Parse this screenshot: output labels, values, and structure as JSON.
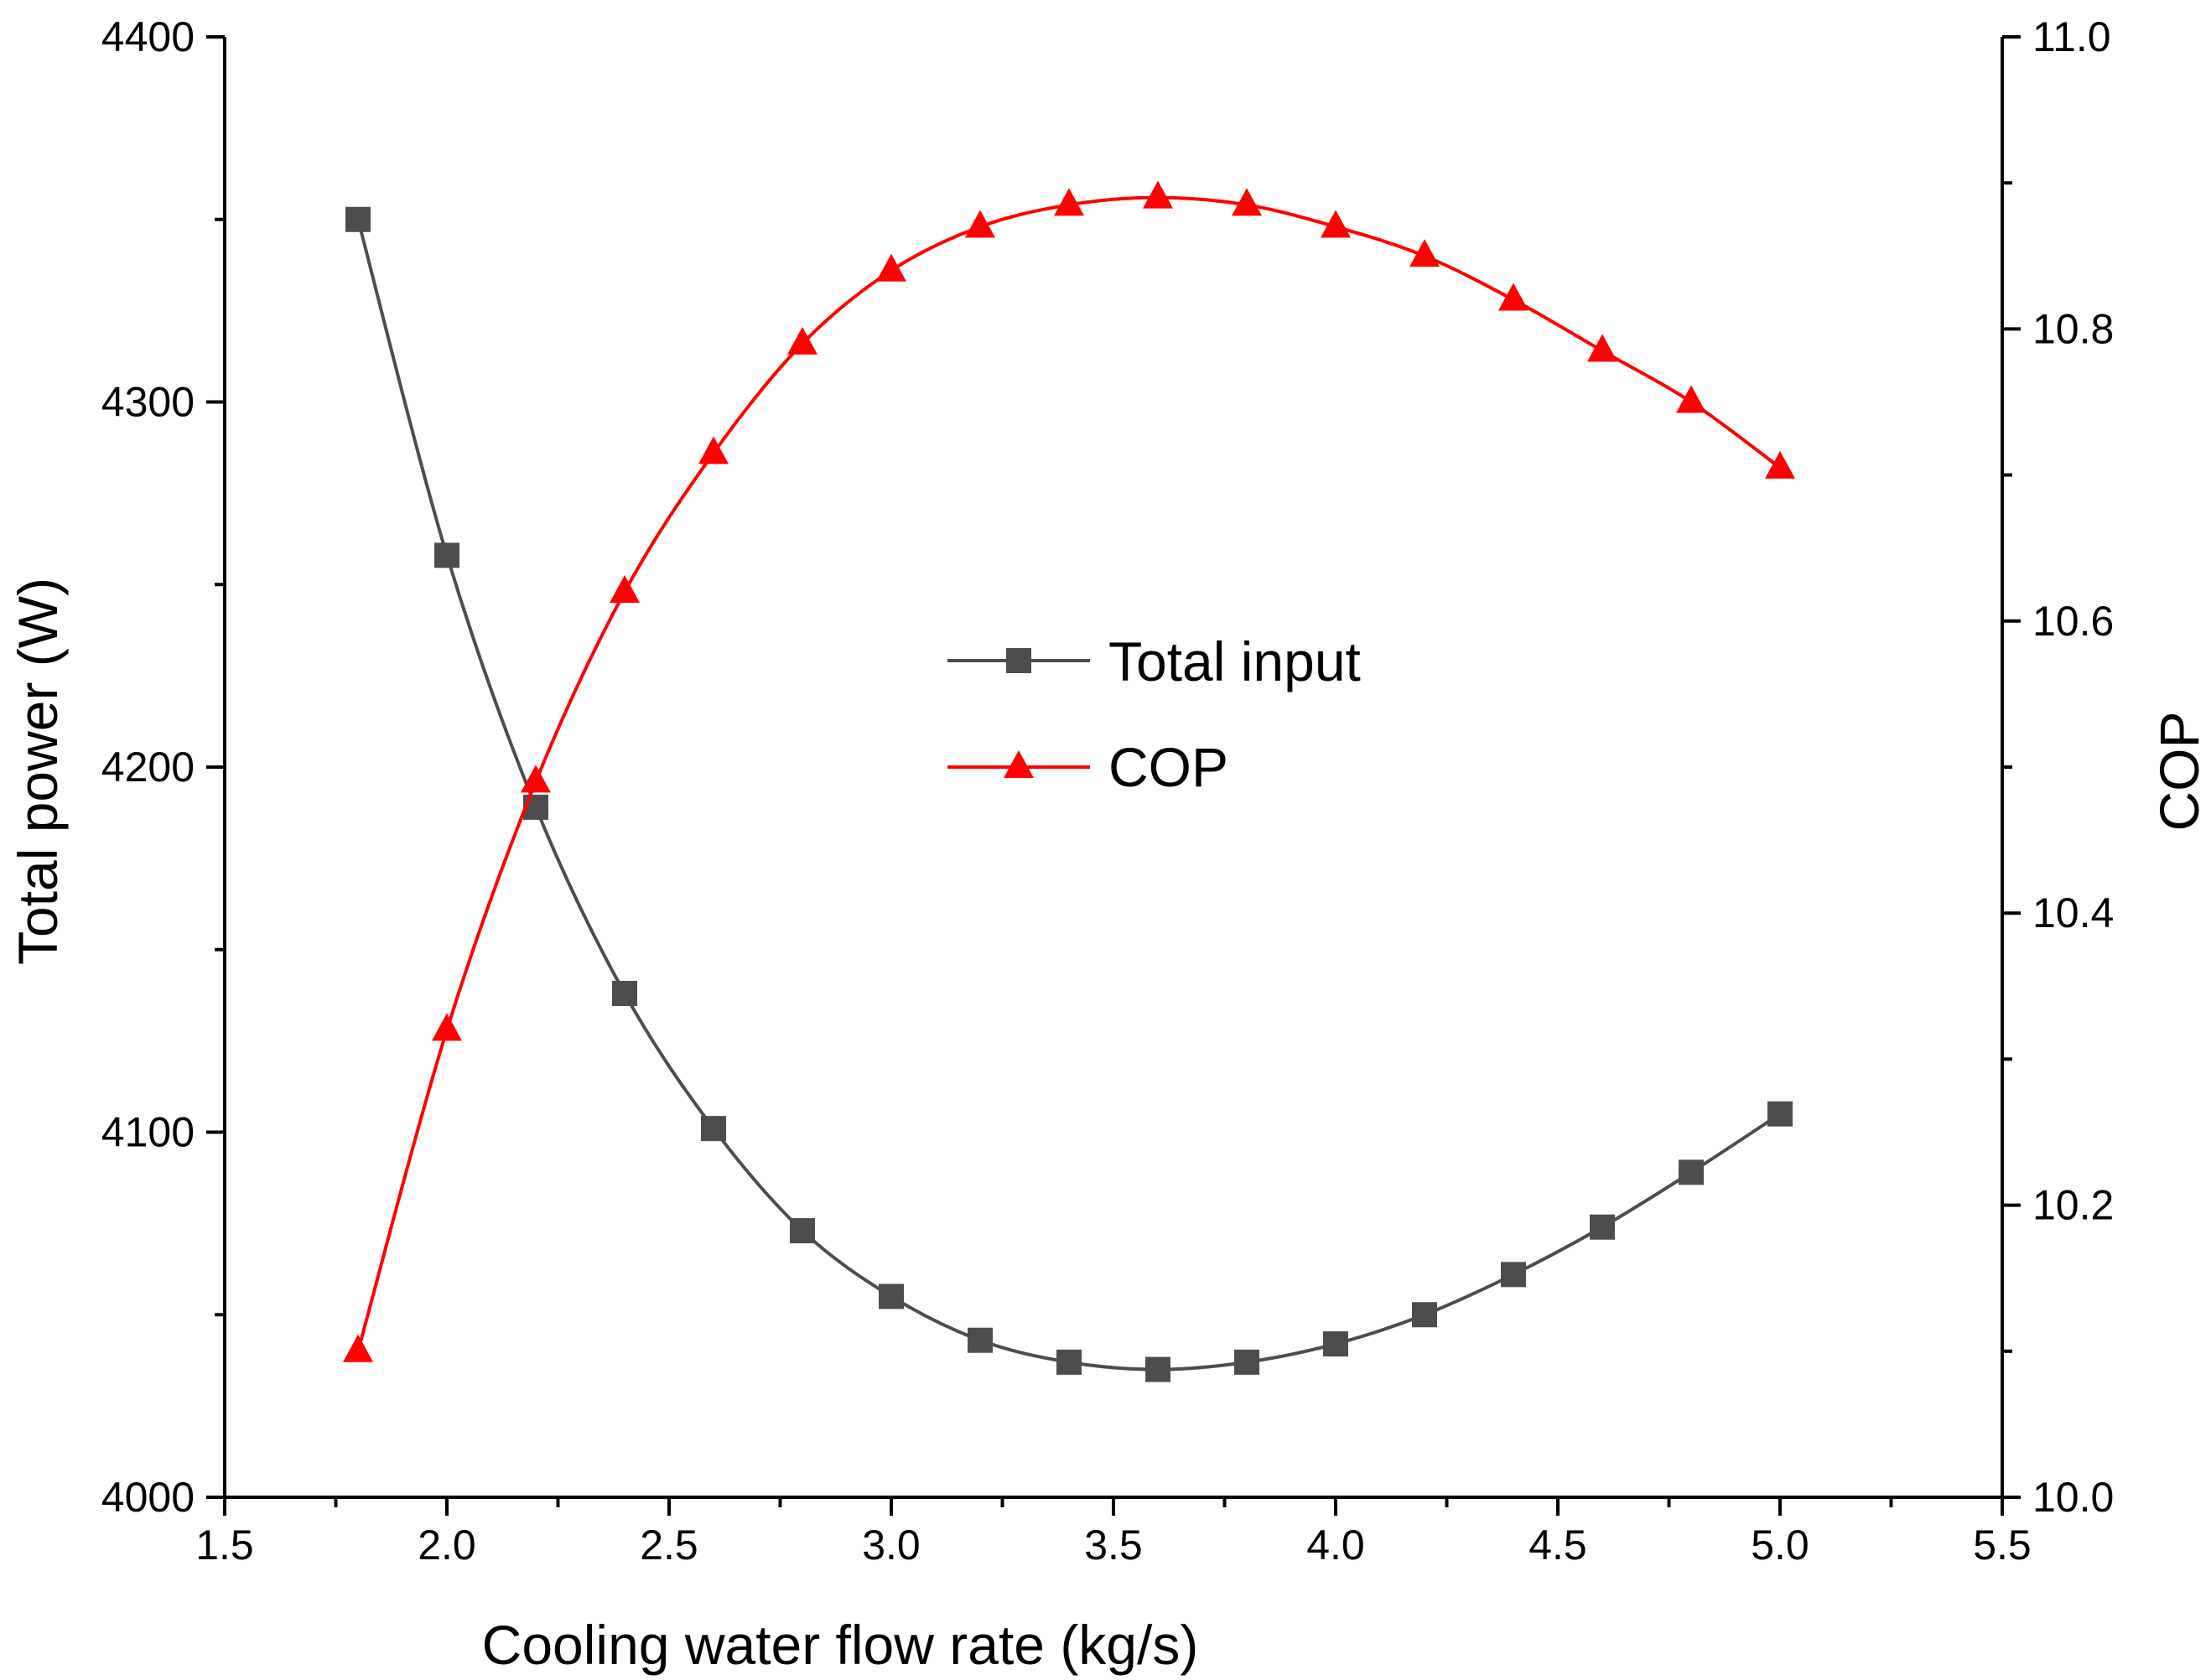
{
  "chart_data": {
    "type": "line",
    "x": [
      1.8,
      2.0,
      2.2,
      2.4,
      2.6,
      2.8,
      3.0,
      3.2,
      3.4,
      3.6,
      3.8,
      4.0,
      4.2,
      4.4,
      4.6,
      4.8,
      5.0
    ],
    "series": [
      {
        "name": "Total input",
        "axis": "left",
        "marker": "square",
        "color": "#4d4d4d",
        "values": [
          4350,
          4258,
          4189,
          4138,
          4101,
          4073,
          4055,
          4043,
          4037,
          4035,
          4037,
          4042,
          4050,
          4061,
          4074,
          4089,
          4105
        ]
      },
      {
        "name": "COP",
        "axis": "right",
        "marker": "triangle",
        "color": "#ff0000",
        "values": [
          10.1,
          10.32,
          10.49,
          10.62,
          10.715,
          10.79,
          10.84,
          10.87,
          10.885,
          10.89,
          10.885,
          10.87,
          10.85,
          10.82,
          10.785,
          10.75,
          10.705
        ]
      }
    ],
    "xlabel": "Cooling water flow rate (kg/s)",
    "ylabel": "Total power (W)",
    "y2label": "COP",
    "xlim": [
      1.5,
      5.5
    ],
    "ylim": [
      4000,
      4400
    ],
    "y2lim": [
      10.0,
      11.0
    ],
    "xticks": [
      "1.5",
      "2.0",
      "2.5",
      "3.0",
      "3.5",
      "4.0",
      "4.5",
      "5.0",
      "5.5"
    ],
    "yticks": [
      "4000",
      "4100",
      "4200",
      "4300",
      "4400"
    ],
    "y2ticks": [
      "10.0",
      "10.2",
      "10.4",
      "10.6",
      "10.8",
      "11.0"
    ],
    "grid": false,
    "legend_position": "center"
  }
}
